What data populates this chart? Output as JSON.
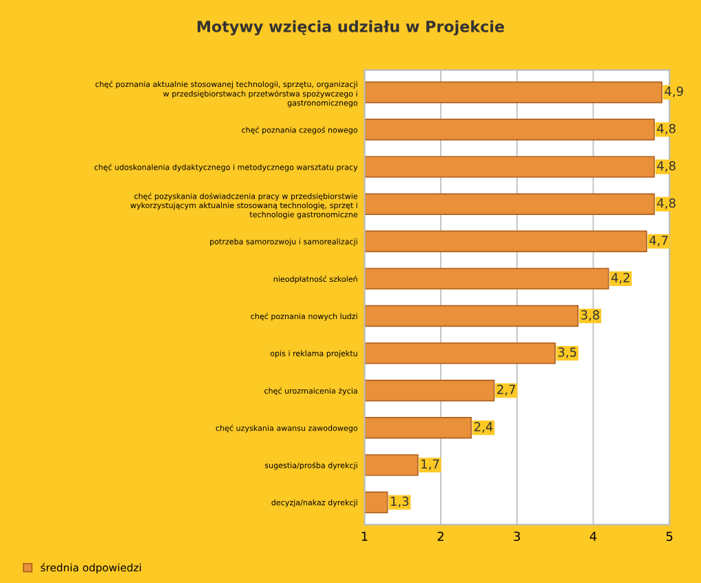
{
  "chart_data": {
    "type": "bar",
    "orientation": "horizontal",
    "title": "Motywy wzięcia udziału w Projekcie",
    "categories": [
      "chęć poznania aktualnie stosowanej technologii, sprzętu, organizacji\nw przedsiębiorstwach przetwórstwa spożywczego i\ngastronomicznego",
      "chęć poznania czegoś nowego",
      "chęć udoskonalenia dydaktycznego i metodycznego warsztatu pracy",
      "chęć pozyskania doświadczenia pracy w przedsiębiorstwie\nwykorzystującym aktualnie stosowaną technologię, sprzęt i\ntechnologie gastronomiczne",
      "potrzeba samorozwoju i samorealizacji",
      "nieodpłatność szkoleń",
      "chęć poznania nowych ludzi",
      "opis i reklama projektu",
      "chęć urozmaicenia życia",
      "chęć uzyskania awansu zawodowego",
      "sugestia/prośba dyrekcji",
      "decyzja/nakaz dyrekcji"
    ],
    "series": [
      {
        "name": "średnia odpowiedzi",
        "color": "#e8903a",
        "values": [
          4.9,
          4.8,
          4.8,
          4.8,
          4.7,
          4.2,
          3.8,
          3.5,
          2.7,
          2.4,
          1.7,
          1.3
        ]
      }
    ],
    "value_labels": [
      "4,9",
      "4,8",
      "4,8",
      "4,8",
      "4,7",
      "4,2",
      "3,8",
      "3,5",
      "2,7",
      "2,4",
      "1,7",
      "1,3"
    ],
    "xlim": [
      1,
      5
    ],
    "xticks": [
      1,
      2,
      3,
      4,
      5
    ],
    "grid": "x",
    "legend": "bottom left"
  }
}
